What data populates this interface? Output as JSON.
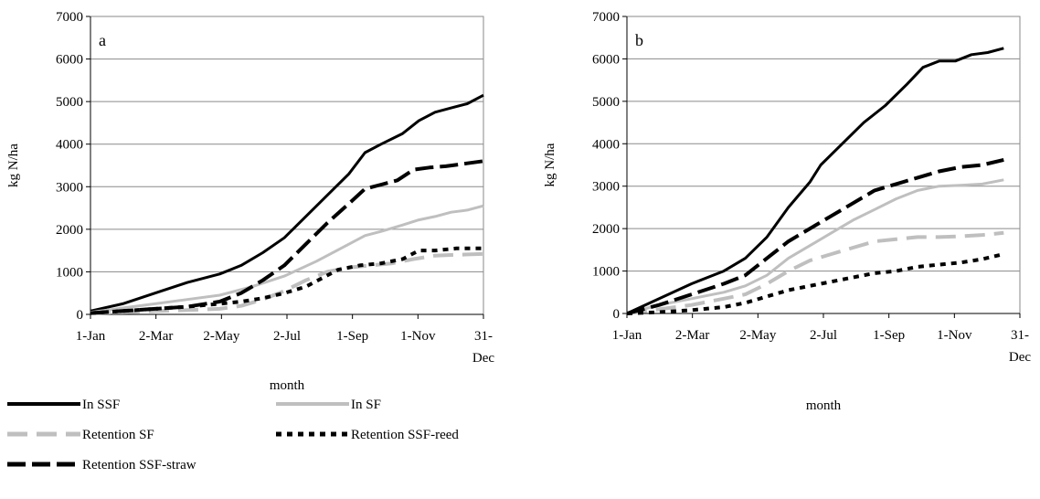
{
  "chart_data": [
    {
      "type": "line",
      "panel_label": "a",
      "ylabel": "kg N/ha",
      "xlabel": "month",
      "ylim": [
        0,
        7000
      ],
      "yticks": [
        "0",
        "1000",
        "2000",
        "3000",
        "4000",
        "5000",
        "6000",
        "7000"
      ],
      "xticks": [
        {
          "line1": "1-Jan",
          "line2": ""
        },
        {
          "line1": "2-Mar",
          "line2": ""
        },
        {
          "line1": "2-May",
          "line2": ""
        },
        {
          "line1": "2-Jul",
          "line2": ""
        },
        {
          "line1": "1-Sep",
          "line2": ""
        },
        {
          "line1": "1-Nov",
          "line2": ""
        },
        {
          "line1": "31-",
          "line2": "Dec"
        }
      ],
      "grid": "horizontal",
      "series": [
        {
          "name": "In SSF",
          "color": "#000000",
          "dash": "solid",
          "points": [
            [
              0,
              80
            ],
            [
              30,
              250
            ],
            [
              60,
              500
            ],
            [
              90,
              750
            ],
            [
              120,
              950
            ],
            [
              140,
              1150
            ],
            [
              160,
              1450
            ],
            [
              180,
              1800
            ],
            [
              200,
              2300
            ],
            [
              220,
              2800
            ],
            [
              240,
              3300
            ],
            [
              255,
              3800
            ],
            [
              270,
              4000
            ],
            [
              290,
              4250
            ],
            [
              305,
              4550
            ],
            [
              320,
              4750
            ],
            [
              335,
              4850
            ],
            [
              350,
              4950
            ],
            [
              365,
              5150
            ]
          ]
        },
        {
          "name": "In SF",
          "color": "#bfbfbf",
          "dash": "solid",
          "points": [
            [
              0,
              50
            ],
            [
              30,
              150
            ],
            [
              60,
              250
            ],
            [
              90,
              350
            ],
            [
              120,
              450
            ],
            [
              150,
              650
            ],
            [
              180,
              900
            ],
            [
              210,
              1250
            ],
            [
              240,
              1650
            ],
            [
              255,
              1850
            ],
            [
              270,
              1950
            ],
            [
              290,
              2100
            ],
            [
              305,
              2220
            ],
            [
              320,
              2300
            ],
            [
              335,
              2400
            ],
            [
              350,
              2450
            ],
            [
              365,
              2550
            ]
          ]
        },
        {
          "name": "Retention SF",
          "color": "#bfbfbf",
          "dash": "dashed",
          "points": [
            [
              0,
              30
            ],
            [
              30,
              50
            ],
            [
              60,
              80
            ],
            [
              90,
              100
            ],
            [
              120,
              130
            ],
            [
              140,
              200
            ],
            [
              160,
              350
            ],
            [
              180,
              550
            ],
            [
              200,
              800
            ],
            [
              220,
              1000
            ],
            [
              240,
              1100
            ],
            [
              260,
              1150
            ],
            [
              280,
              1200
            ],
            [
              300,
              1300
            ],
            [
              320,
              1380
            ],
            [
              340,
              1400
            ],
            [
              365,
              1420
            ]
          ]
        },
        {
          "name": "Retention SSF-reed",
          "color": "#000000",
          "dash": "dotted",
          "points": [
            [
              0,
              30
            ],
            [
              30,
              80
            ],
            [
              60,
              130
            ],
            [
              90,
              180
            ],
            [
              120,
              250
            ],
            [
              140,
              300
            ],
            [
              160,
              380
            ],
            [
              180,
              500
            ],
            [
              200,
              650
            ],
            [
              215,
              850
            ],
            [
              230,
              1050
            ],
            [
              250,
              1150
            ],
            [
              270,
              1200
            ],
            [
              290,
              1300
            ],
            [
              305,
              1500
            ],
            [
              320,
              1500
            ],
            [
              340,
              1550
            ],
            [
              365,
              1550
            ]
          ]
        },
        {
          "name": "Retention SSF-straw",
          "color": "#000000",
          "dash": "longdash",
          "points": [
            [
              0,
              30
            ],
            [
              30,
              80
            ],
            [
              60,
              130
            ],
            [
              90,
              180
            ],
            [
              120,
              300
            ],
            [
              140,
              500
            ],
            [
              160,
              800
            ],
            [
              180,
              1150
            ],
            [
              200,
              1650
            ],
            [
              220,
              2150
            ],
            [
              240,
              2600
            ],
            [
              255,
              2950
            ],
            [
              270,
              3050
            ],
            [
              285,
              3150
            ],
            [
              300,
              3400
            ],
            [
              315,
              3450
            ],
            [
              330,
              3480
            ],
            [
              350,
              3550
            ],
            [
              365,
              3600
            ]
          ]
        }
      ]
    },
    {
      "type": "line",
      "panel_label": "b",
      "ylabel": "kg N/ha",
      "xlabel": "month",
      "ylim": [
        0,
        7000
      ],
      "yticks": [
        "0",
        "1000",
        "2000",
        "3000",
        "4000",
        "5000",
        "6000",
        "7000"
      ],
      "xticks": [
        {
          "line1": "1-Jan",
          "line2": ""
        },
        {
          "line1": "2-Mar",
          "line2": ""
        },
        {
          "line1": "2-May",
          "line2": ""
        },
        {
          "line1": "2-Jul",
          "line2": ""
        },
        {
          "line1": "1-Sep",
          "line2": ""
        },
        {
          "line1": "1-Nov",
          "line2": ""
        },
        {
          "line1": "31-",
          "line2": "Dec"
        }
      ],
      "grid": "horizontal",
      "series": [
        {
          "name": "In SSF",
          "color": "#000000",
          "dash": "solid",
          "points": [
            [
              0,
              0
            ],
            [
              30,
              350
            ],
            [
              60,
              700
            ],
            [
              90,
              1000
            ],
            [
              110,
              1300
            ],
            [
              130,
              1800
            ],
            [
              150,
              2500
            ],
            [
              170,
              3100
            ],
            [
              180,
              3500
            ],
            [
              200,
              4000
            ],
            [
              220,
              4500
            ],
            [
              240,
              4900
            ],
            [
              260,
              5400
            ],
            [
              275,
              5800
            ],
            [
              290,
              5950
            ],
            [
              305,
              5950
            ],
            [
              320,
              6100
            ],
            [
              335,
              6150
            ],
            [
              350,
              6250
            ]
          ]
        },
        {
          "name": "In SF",
          "color": "#bfbfbf",
          "dash": "solid",
          "points": [
            [
              0,
              0
            ],
            [
              30,
              200
            ],
            [
              60,
              350
            ],
            [
              90,
              500
            ],
            [
              110,
              650
            ],
            [
              130,
              900
            ],
            [
              150,
              1300
            ],
            [
              170,
              1600
            ],
            [
              190,
              1900
            ],
            [
              210,
              2200
            ],
            [
              230,
              2450
            ],
            [
              250,
              2700
            ],
            [
              270,
              2900
            ],
            [
              290,
              3000
            ],
            [
              310,
              3020
            ],
            [
              330,
              3050
            ],
            [
              350,
              3150
            ]
          ]
        },
        {
          "name": "Retention SF",
          "color": "#bfbfbf",
          "dash": "dashed",
          "points": [
            [
              0,
              0
            ],
            [
              30,
              100
            ],
            [
              60,
              200
            ],
            [
              90,
              350
            ],
            [
              110,
              450
            ],
            [
              130,
              700
            ],
            [
              150,
              1000
            ],
            [
              170,
              1250
            ],
            [
              190,
              1400
            ],
            [
              210,
              1550
            ],
            [
              230,
              1700
            ],
            [
              250,
              1750
            ],
            [
              270,
              1800
            ],
            [
              290,
              1800
            ],
            [
              310,
              1820
            ],
            [
              330,
              1850
            ],
            [
              350,
              1900
            ]
          ]
        },
        {
          "name": "Retention SSF-reed",
          "color": "#000000",
          "dash": "dotted",
          "points": [
            [
              0,
              0
            ],
            [
              30,
              30
            ],
            [
              60,
              80
            ],
            [
              90,
              150
            ],
            [
              110,
              250
            ],
            [
              130,
              400
            ],
            [
              150,
              550
            ],
            [
              170,
              650
            ],
            [
              190,
              750
            ],
            [
              210,
              850
            ],
            [
              230,
              950
            ],
            [
              250,
              1000
            ],
            [
              270,
              1100
            ],
            [
              290,
              1150
            ],
            [
              310,
              1200
            ],
            [
              330,
              1280
            ],
            [
              350,
              1400
            ]
          ]
        },
        {
          "name": "Retention SSF-straw",
          "color": "#000000",
          "dash": "longdash",
          "points": [
            [
              0,
              0
            ],
            [
              30,
              200
            ],
            [
              60,
              450
            ],
            [
              90,
              700
            ],
            [
              110,
              900
            ],
            [
              130,
              1300
            ],
            [
              150,
              1700
            ],
            [
              170,
              2000
            ],
            [
              190,
              2300
            ],
            [
              210,
              2600
            ],
            [
              230,
              2900
            ],
            [
              250,
              3050
            ],
            [
              270,
              3200
            ],
            [
              290,
              3350
            ],
            [
              310,
              3450
            ],
            [
              330,
              3500
            ],
            [
              350,
              3620
            ]
          ]
        }
      ]
    }
  ],
  "legend": [
    {
      "name": "In SSF",
      "color": "#000000",
      "dash": "solid"
    },
    {
      "name": "In SF",
      "color": "#bfbfbf",
      "dash": "solid"
    },
    {
      "name": "Retention SF",
      "color": "#bfbfbf",
      "dash": "dashed"
    },
    {
      "name": "Retention SSF-reed",
      "color": "#000000",
      "dash": "dotted"
    },
    {
      "name": "Retention SSF-straw",
      "color": "#000000",
      "dash": "longdash"
    }
  ]
}
